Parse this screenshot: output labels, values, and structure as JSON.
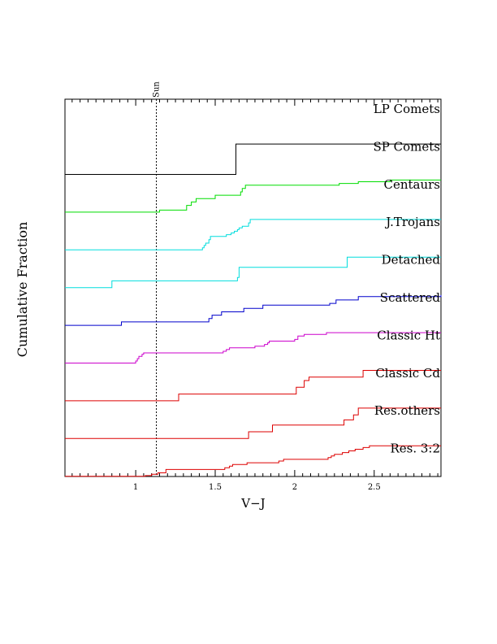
{
  "chart_data": {
    "type": "line",
    "xlabel": "V−J",
    "ylabel": "Cumulative Fraction",
    "xlim": [
      0.555,
      2.92
    ],
    "x_ticks": [
      1,
      1.5,
      2,
      2.5
    ],
    "x_tick_labels": [
      "1",
      "1.5",
      "2",
      "2.5"
    ],
    "reference_line": {
      "x": 1.13,
      "label": "Sun",
      "style": "dashed"
    },
    "series": [
      {
        "name": "LP Comets",
        "color": "#000000",
        "steps": []
      },
      {
        "name": "SP Comets",
        "color": "#000000",
        "steps": [
          [
            0.555,
            0.0
          ],
          [
            1.63,
            0.9
          ],
          [
            2.92,
            0.9
          ]
        ]
      },
      {
        "name": "Centaurs",
        "color": "#00dd00",
        "steps": [
          [
            0.555,
            0.0
          ],
          [
            1.15,
            0.06
          ],
          [
            1.32,
            0.2
          ],
          [
            1.35,
            0.3
          ],
          [
            1.38,
            0.4
          ],
          [
            1.5,
            0.5
          ],
          [
            1.66,
            0.6
          ],
          [
            1.67,
            0.7
          ],
          [
            1.69,
            0.8
          ],
          [
            2.28,
            0.85
          ],
          [
            2.4,
            0.9
          ],
          [
            2.6,
            0.95
          ],
          [
            2.92,
            0.95
          ]
        ]
      },
      {
        "name": "J.Trojans",
        "color": "#00dddd",
        "steps": [
          [
            0.555,
            0.0
          ],
          [
            1.42,
            0.06
          ],
          [
            1.43,
            0.13
          ],
          [
            1.44,
            0.2
          ],
          [
            1.46,
            0.3
          ],
          [
            1.47,
            0.4
          ],
          [
            1.57,
            0.45
          ],
          [
            1.6,
            0.5
          ],
          [
            1.62,
            0.55
          ],
          [
            1.64,
            0.6
          ],
          [
            1.65,
            0.65
          ],
          [
            1.67,
            0.7
          ],
          [
            1.71,
            0.8
          ],
          [
            1.72,
            0.9
          ],
          [
            2.92,
            0.9
          ]
        ]
      },
      {
        "name": "Detached",
        "color": "#00dddd",
        "steps": [
          [
            0.555,
            0.0
          ],
          [
            0.85,
            0.2
          ],
          [
            1.64,
            0.3
          ],
          [
            1.65,
            0.6
          ],
          [
            2.33,
            0.9
          ],
          [
            2.92,
            0.9
          ]
        ]
      },
      {
        "name": "Scattered",
        "color": "#0000cc",
        "steps": [
          [
            0.555,
            0.0
          ],
          [
            0.91,
            0.1
          ],
          [
            1.46,
            0.2
          ],
          [
            1.48,
            0.3
          ],
          [
            1.54,
            0.4
          ],
          [
            1.68,
            0.5
          ],
          [
            1.8,
            0.6
          ],
          [
            2.22,
            0.65
          ],
          [
            2.26,
            0.75
          ],
          [
            2.4,
            0.85
          ],
          [
            2.92,
            0.9
          ]
        ]
      },
      {
        "name": "Classic Ht",
        "color": "#cc00cc",
        "steps": [
          [
            0.555,
            0.0
          ],
          [
            1.0,
            0.06
          ],
          [
            1.01,
            0.13
          ],
          [
            1.02,
            0.2
          ],
          [
            1.04,
            0.26
          ],
          [
            1.05,
            0.3
          ],
          [
            1.55,
            0.35
          ],
          [
            1.57,
            0.4
          ],
          [
            1.59,
            0.45
          ],
          [
            1.75,
            0.5
          ],
          [
            1.81,
            0.55
          ],
          [
            1.83,
            0.6
          ],
          [
            1.84,
            0.65
          ],
          [
            2.0,
            0.7
          ],
          [
            2.02,
            0.8
          ],
          [
            2.06,
            0.85
          ],
          [
            2.2,
            0.9
          ],
          [
            2.92,
            0.9
          ]
        ]
      },
      {
        "name": "Classic Cd",
        "color": "#dd0000",
        "steps": [
          [
            0.555,
            0.0
          ],
          [
            1.27,
            0.2
          ],
          [
            2.01,
            0.4
          ],
          [
            2.06,
            0.6
          ],
          [
            2.09,
            0.7
          ],
          [
            2.43,
            0.9
          ],
          [
            2.92,
            0.9
          ]
        ]
      },
      {
        "name": "Res.others",
        "color": "#dd0000",
        "steps": [
          [
            0.555,
            0.0
          ],
          [
            1.71,
            0.2
          ],
          [
            1.86,
            0.4
          ],
          [
            2.31,
            0.55
          ],
          [
            2.37,
            0.7
          ],
          [
            2.4,
            0.9
          ],
          [
            2.92,
            0.9
          ]
        ]
      },
      {
        "name": "Res. 3:2",
        "color": "#dd0000",
        "steps": [
          [
            0.555,
            0.0
          ],
          [
            1.06,
            0.02
          ],
          [
            1.1,
            0.06
          ],
          [
            1.14,
            0.1
          ],
          [
            1.19,
            0.2
          ],
          [
            1.56,
            0.25
          ],
          [
            1.59,
            0.3
          ],
          [
            1.61,
            0.35
          ],
          [
            1.7,
            0.4
          ],
          [
            1.9,
            0.45
          ],
          [
            1.93,
            0.5
          ],
          [
            2.21,
            0.55
          ],
          [
            2.23,
            0.6
          ],
          [
            2.25,
            0.65
          ],
          [
            2.3,
            0.7
          ],
          [
            2.34,
            0.75
          ],
          [
            2.38,
            0.8
          ],
          [
            2.43,
            0.85
          ],
          [
            2.47,
            0.9
          ],
          [
            2.92,
            0.9
          ]
        ]
      }
    ]
  }
}
